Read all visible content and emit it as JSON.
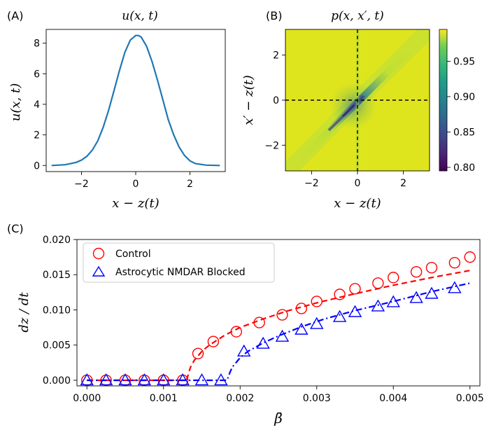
{
  "chart_data": [
    {
      "panel": "(A)",
      "type": "line",
      "title": "u(x, t)",
      "xlabel": "x − z(t)",
      "ylabel": "u(x, t)",
      "xlim": [
        -3.3,
        3.3
      ],
      "ylim": [
        -0.4,
        8.9
      ],
      "xticks": [
        -2,
        0,
        2
      ],
      "xtick_labels": [
        "−2",
        "0",
        "2"
      ],
      "yticks": [
        0,
        2,
        4,
        6,
        8
      ],
      "ytick_labels": [
        "0",
        "2",
        "4",
        "6",
        "8"
      ],
      "series": [
        {
          "color": "#1f77b4",
          "x": [
            -3.1,
            -2.6,
            -2.2,
            -2.0,
            -1.8,
            -1.6,
            -1.4,
            -1.2,
            -1.0,
            -0.8,
            -0.6,
            -0.4,
            -0.2,
            0.0,
            0.1,
            0.2,
            0.4,
            0.6,
            0.8,
            1.0,
            1.2,
            1.4,
            1.6,
            1.8,
            2.0,
            2.2,
            2.6,
            3.1
          ],
          "y": [
            0.0,
            0.05,
            0.2,
            0.35,
            0.6,
            1.0,
            1.6,
            2.5,
            3.6,
            4.9,
            6.2,
            7.4,
            8.2,
            8.5,
            8.5,
            8.4,
            7.8,
            6.8,
            5.6,
            4.3,
            3.0,
            2.0,
            1.2,
            0.65,
            0.3,
            0.12,
            0.02,
            0.0
          ]
        }
      ]
    },
    {
      "panel": "(B)",
      "type": "heatmap",
      "title": "p(x, x′, t)",
      "xlabel": "x − z(t)",
      "ylabel": "x′ − z(t)",
      "xlim": [
        -3.14,
        3.14
      ],
      "ylim": [
        -3.14,
        3.14
      ],
      "xticks": [
        -2,
        0,
        2
      ],
      "xtick_labels": [
        "−2",
        "0",
        "2"
      ],
      "yticks": [
        -2,
        0,
        2
      ],
      "ytick_labels": [
        "−2",
        "0",
        "2"
      ],
      "colorbar": {
        "range": [
          0.795,
          0.995
        ],
        "ticks": [
          0.8,
          0.85,
          0.9,
          0.95
        ],
        "tick_labels": [
          "0.80",
          "0.85",
          "0.90",
          "0.95"
        ],
        "colormap": "viridis"
      },
      "reference_lines": [
        {
          "orientation": "vertical",
          "at": 0
        },
        {
          "orientation": "horizontal",
          "at": 0
        }
      ],
      "description": "values near 0.99 everywhere except a darker band along the diagonal x = x′, lowest (~0.80) near the origin"
    },
    {
      "panel": "(C)",
      "type": "scatter",
      "xlabel": "β̄",
      "ylabel": "dz / dt",
      "xlim": [
        -0.00013,
        0.00513
      ],
      "ylim": [
        -0.0008,
        0.02
      ],
      "xticks": [
        0.0,
        0.001,
        0.002,
        0.003,
        0.004,
        0.005
      ],
      "xtick_labels": [
        "0.000",
        "0.001",
        "0.002",
        "0.003",
        "0.004",
        "0.005"
      ],
      "yticks": [
        0.0,
        0.005,
        0.01,
        0.015,
        0.02
      ],
      "ytick_labels": [
        "0.000",
        "0.005",
        "0.010",
        "0.015",
        "0.020"
      ],
      "legend_position": "top-left",
      "series": [
        {
          "name": "Control",
          "color": "#ff0000",
          "marker": "circle",
          "x": [
            0.0,
            0.00025,
            0.0005,
            0.00075,
            0.001,
            0.00125,
            0.00145,
            0.00165,
            0.00195,
            0.00225,
            0.00255,
            0.0028,
            0.003,
            0.0033,
            0.0035,
            0.0038,
            0.004,
            0.0043,
            0.0045,
            0.0048,
            0.005
          ],
          "y": [
            0.0,
            0.0,
            0.0,
            0.0,
            0.0,
            0.0,
            0.0038,
            0.0055,
            0.0069,
            0.0082,
            0.0093,
            0.0102,
            0.0112,
            0.0122,
            0.013,
            0.0138,
            0.0146,
            0.0154,
            0.016,
            0.0167,
            0.0175
          ],
          "fit": {
            "style": "dashed",
            "x": [
              0.0,
              0.00125,
              0.0013,
              0.00135,
              0.0014,
              0.0015,
              0.0016,
              0.0018,
              0.002,
              0.0023,
              0.0026,
              0.003,
              0.0035,
              0.004,
              0.0045,
              0.005
            ],
            "y": [
              0.0,
              0.0,
              0.0,
              0.0018,
              0.0028,
              0.0041,
              0.005,
              0.0064,
              0.0075,
              0.0087,
              0.0098,
              0.011,
              0.0123,
              0.0135,
              0.0146,
              0.0156
            ]
          }
        },
        {
          "name": "Astrocytic NMDAR Blocked",
          "color": "#0000ff",
          "marker": "triangle",
          "x": [
            0.0,
            0.00025,
            0.0005,
            0.00075,
            0.001,
            0.00125,
            0.0015,
            0.00175,
            0.00205,
            0.0023,
            0.00255,
            0.0028,
            0.003,
            0.0033,
            0.0035,
            0.0038,
            0.004,
            0.0043,
            0.0045,
            0.0048
          ],
          "y": [
            0.0,
            0.0,
            0.0,
            0.0,
            0.0,
            0.0,
            0.0,
            0.0,
            0.0041,
            0.0052,
            0.0062,
            0.0072,
            0.008,
            0.009,
            0.0097,
            0.0105,
            0.0111,
            0.0117,
            0.0123,
            0.0131
          ],
          "fit": {
            "style": "dashdot",
            "x": [
              0.0,
              0.0018,
              0.00183,
              0.00187,
              0.0019,
              0.002,
              0.0021,
              0.0023,
              0.0025,
              0.0028,
              0.0031,
              0.0035,
              0.004,
              0.0045,
              0.005
            ],
            "y": [
              0.0,
              0.0,
              0.0,
              0.0012,
              0.0019,
              0.0032,
              0.0041,
              0.0053,
              0.0063,
              0.0076,
              0.0087,
              0.0099,
              0.0112,
              0.0126,
              0.0138
            ]
          }
        }
      ]
    }
  ]
}
